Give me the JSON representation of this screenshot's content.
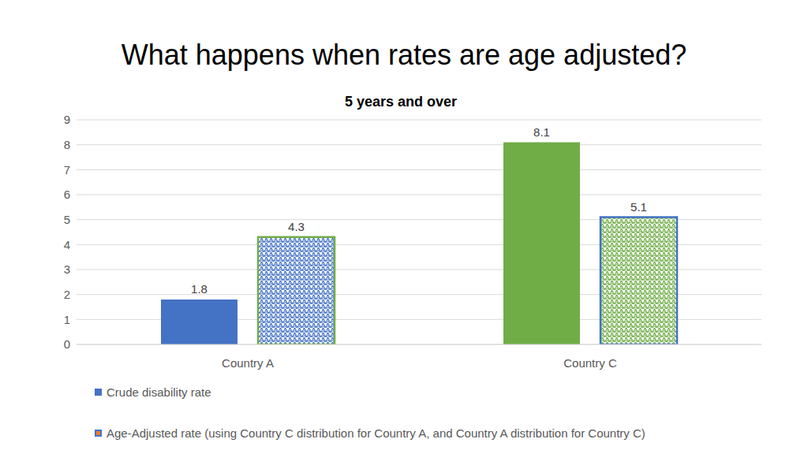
{
  "chart_data": {
    "type": "bar",
    "title": "What happens when rates are age adjusted?",
    "subtitle": "5 years and over",
    "categories": [
      "Country A",
      "Country C"
    ],
    "series": [
      {
        "name": "Crude disability rate",
        "color": "#4472c4",
        "colors": [
          "#4472c4",
          "#70ad47"
        ],
        "values": [
          1.8,
          8.1
        ]
      },
      {
        "name": "Age-Adjusted rate (using Country C distribution for Country A, and Country A distribution for Country C)",
        "color": "#ed7d31",
        "colors": [
          "#4472c4",
          "#70ad47"
        ],
        "values": [
          4.3,
          5.1
        ]
      }
    ],
    "ylim": [
      0,
      9
    ],
    "yticks": [
      0,
      1,
      2,
      3,
      4,
      5,
      6,
      7,
      8,
      9
    ],
    "grid": true,
    "data_labels": true,
    "legend": "bottom"
  }
}
